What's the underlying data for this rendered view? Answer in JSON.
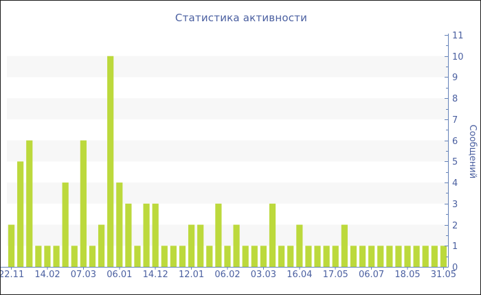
{
  "chart": {
    "title": "Статистика активности"
  },
  "chart_data": {
    "type": "bar",
    "title": "Статистика активности",
    "xlabel": "",
    "ylabel": "Сообщений",
    "ylim": [
      0,
      11
    ],
    "y_major_step": 1,
    "y_minor_step": 0.5,
    "y_axis_side": "right",
    "grid": "alternating-horizontal-bands",
    "legend": "none",
    "label_every_n_bars": 4,
    "x_tick_labels": [
      "22.11",
      "14.02",
      "07.03",
      "06.01",
      "14.12",
      "12.01",
      "06.02",
      "03.03",
      "16.04",
      "17.05",
      "06.07",
      "18.05",
      "31.05"
    ],
    "values": [
      2,
      5,
      6,
      1,
      1,
      1,
      4,
      1,
      6,
      1,
      2,
      10,
      4,
      3,
      1,
      3,
      3,
      1,
      1,
      1,
      2,
      2,
      1,
      3,
      1,
      2,
      1,
      1,
      1,
      3,
      1,
      1,
      2,
      1,
      1,
      1,
      1,
      2,
      1,
      1,
      1,
      1,
      1,
      1,
      1,
      1,
      1,
      1,
      1
    ],
    "colors": {
      "bar": "#bcd93c",
      "band": "#f7f7f7",
      "axis": "#6381b8",
      "tick_text": "#4a5fa0",
      "title_text": "#4a5fa0",
      "background": "#ffffff",
      "border": "#1a1a1a"
    }
  }
}
